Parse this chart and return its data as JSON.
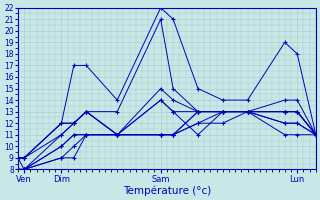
{
  "xlabel": "Température (°c)",
  "bg_color": "#c8e8e8",
  "grid_color": "#a8c8c8",
  "line_color": "#0000bb",
  "ylim": [
    8,
    22
  ],
  "xlim": [
    0,
    48
  ],
  "yticks": [
    8,
    9,
    10,
    11,
    12,
    13,
    14,
    15,
    16,
    17,
    18,
    19,
    20,
    21,
    22
  ],
  "xtick_positions": [
    1,
    7,
    23,
    45
  ],
  "xtick_labels": [
    "Ven",
    "Dim",
    "Sam",
    "Lun"
  ],
  "series": [
    [
      9,
      9,
      12,
      17,
      17,
      14,
      22,
      21,
      15,
      14,
      14,
      19,
      18,
      11
    ],
    [
      9,
      9,
      12,
      12,
      13,
      13,
      21,
      15,
      13,
      13,
      13,
      14,
      14,
      11
    ],
    [
      9,
      9,
      12,
      12,
      13,
      11,
      15,
      14,
      13,
      13,
      13,
      13,
      13,
      11
    ],
    [
      9,
      9,
      11,
      12,
      13,
      11,
      14,
      13,
      11,
      13,
      13,
      13,
      13,
      11
    ],
    [
      9,
      8,
      11,
      12,
      13,
      11,
      14,
      13,
      13,
      13,
      13,
      12,
      12,
      11
    ],
    [
      8,
      8,
      10,
      11,
      11,
      11,
      11,
      11,
      12,
      13,
      13,
      13,
      13,
      11
    ],
    [
      8,
      8,
      10,
      11,
      11,
      11,
      11,
      11,
      13,
      13,
      13,
      12,
      12,
      11
    ],
    [
      8,
      8,
      9,
      10,
      11,
      11,
      11,
      11,
      12,
      12,
      13,
      13,
      13,
      11
    ],
    [
      8,
      8,
      9,
      9,
      11,
      11,
      11,
      11,
      13,
      13,
      13,
      11,
      11,
      11
    ]
  ],
  "x_vals": [
    0,
    1,
    7,
    9,
    11,
    16,
    23,
    25,
    29,
    33,
    37,
    43,
    45,
    48
  ]
}
